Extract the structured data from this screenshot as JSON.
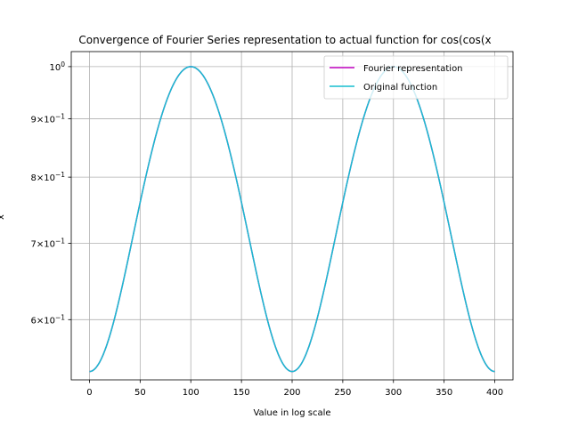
{
  "chart_data": {
    "type": "line",
    "title": "Convergence of Fourier Series representation to actual function for cos(cos(x",
    "xlabel": "Value in log scale",
    "ylabel": "x",
    "x_scale": "linear",
    "y_scale": "log",
    "xlim": [
      -18,
      418
    ],
    "ylim": [
      0.5313,
      1.0308
    ],
    "x_ticks": [
      0,
      50,
      100,
      150,
      200,
      250,
      300,
      350,
      400
    ],
    "x_tick_labels": [
      "0",
      "50",
      "100",
      "150",
      "200",
      "250",
      "300",
      "350",
      "400"
    ],
    "y_ticks": [
      0.6,
      0.7,
      0.8,
      0.9,
      1.0
    ],
    "y_tick_labels": [
      {
        "mantissa": "6",
        "base": "10",
        "exponent": "−1"
      },
      {
        "mantissa": "7",
        "base": "10",
        "exponent": "−1"
      },
      {
        "mantissa": "8",
        "base": "10",
        "exponent": "−1"
      },
      {
        "mantissa": "9",
        "base": "10",
        "exponent": "−1"
      },
      {
        "mantissa": "",
        "base": "10",
        "exponent": "0"
      }
    ],
    "grid": true,
    "legend_position": "upper-right",
    "x_range": [
      0,
      400
    ],
    "series": [
      {
        "name": "Fourier representation",
        "color": "#bf00bf",
        "function": "cos(cos(pi*x/200))"
      },
      {
        "name": "Original function",
        "color": "#17becf",
        "function": "cos(cos(pi*x/200))"
      }
    ]
  }
}
